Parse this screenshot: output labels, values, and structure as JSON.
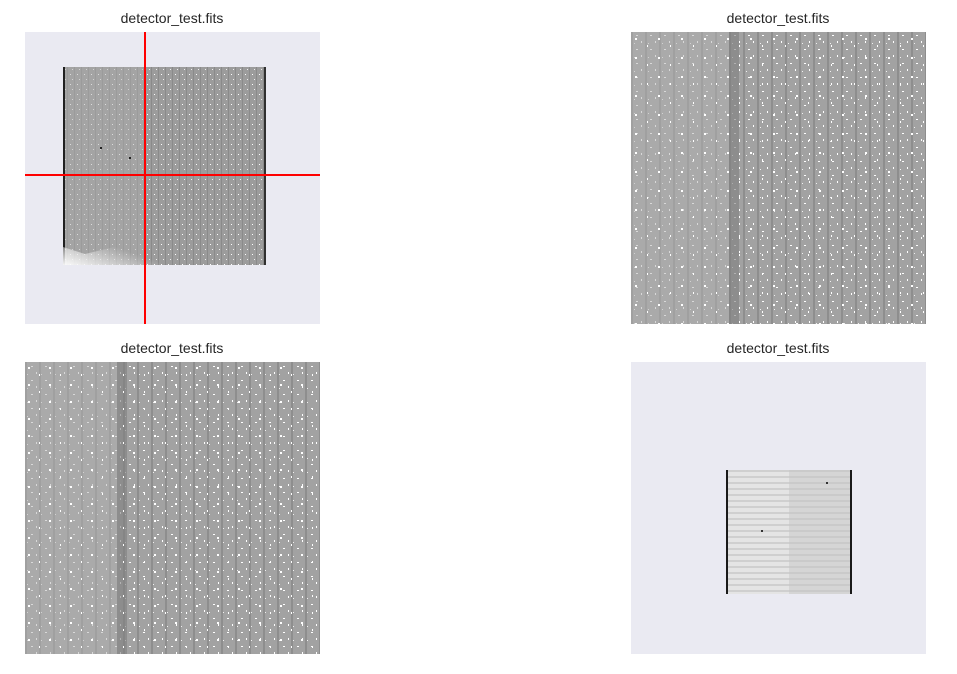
{
  "figure": {
    "background": "#ffffff",
    "axes_background": "#eaeaf2"
  },
  "panels": [
    {
      "title": "detector_test.fits",
      "view": "full-frame-with-crosshair",
      "crosshair_color": "#ff0000"
    },
    {
      "title": "detector_test.fits",
      "view": "zoomed-frame"
    },
    {
      "title": "detector_test.fits",
      "view": "zoomed-frame"
    },
    {
      "title": "detector_test.fits",
      "view": "small-frame-centered"
    }
  ]
}
